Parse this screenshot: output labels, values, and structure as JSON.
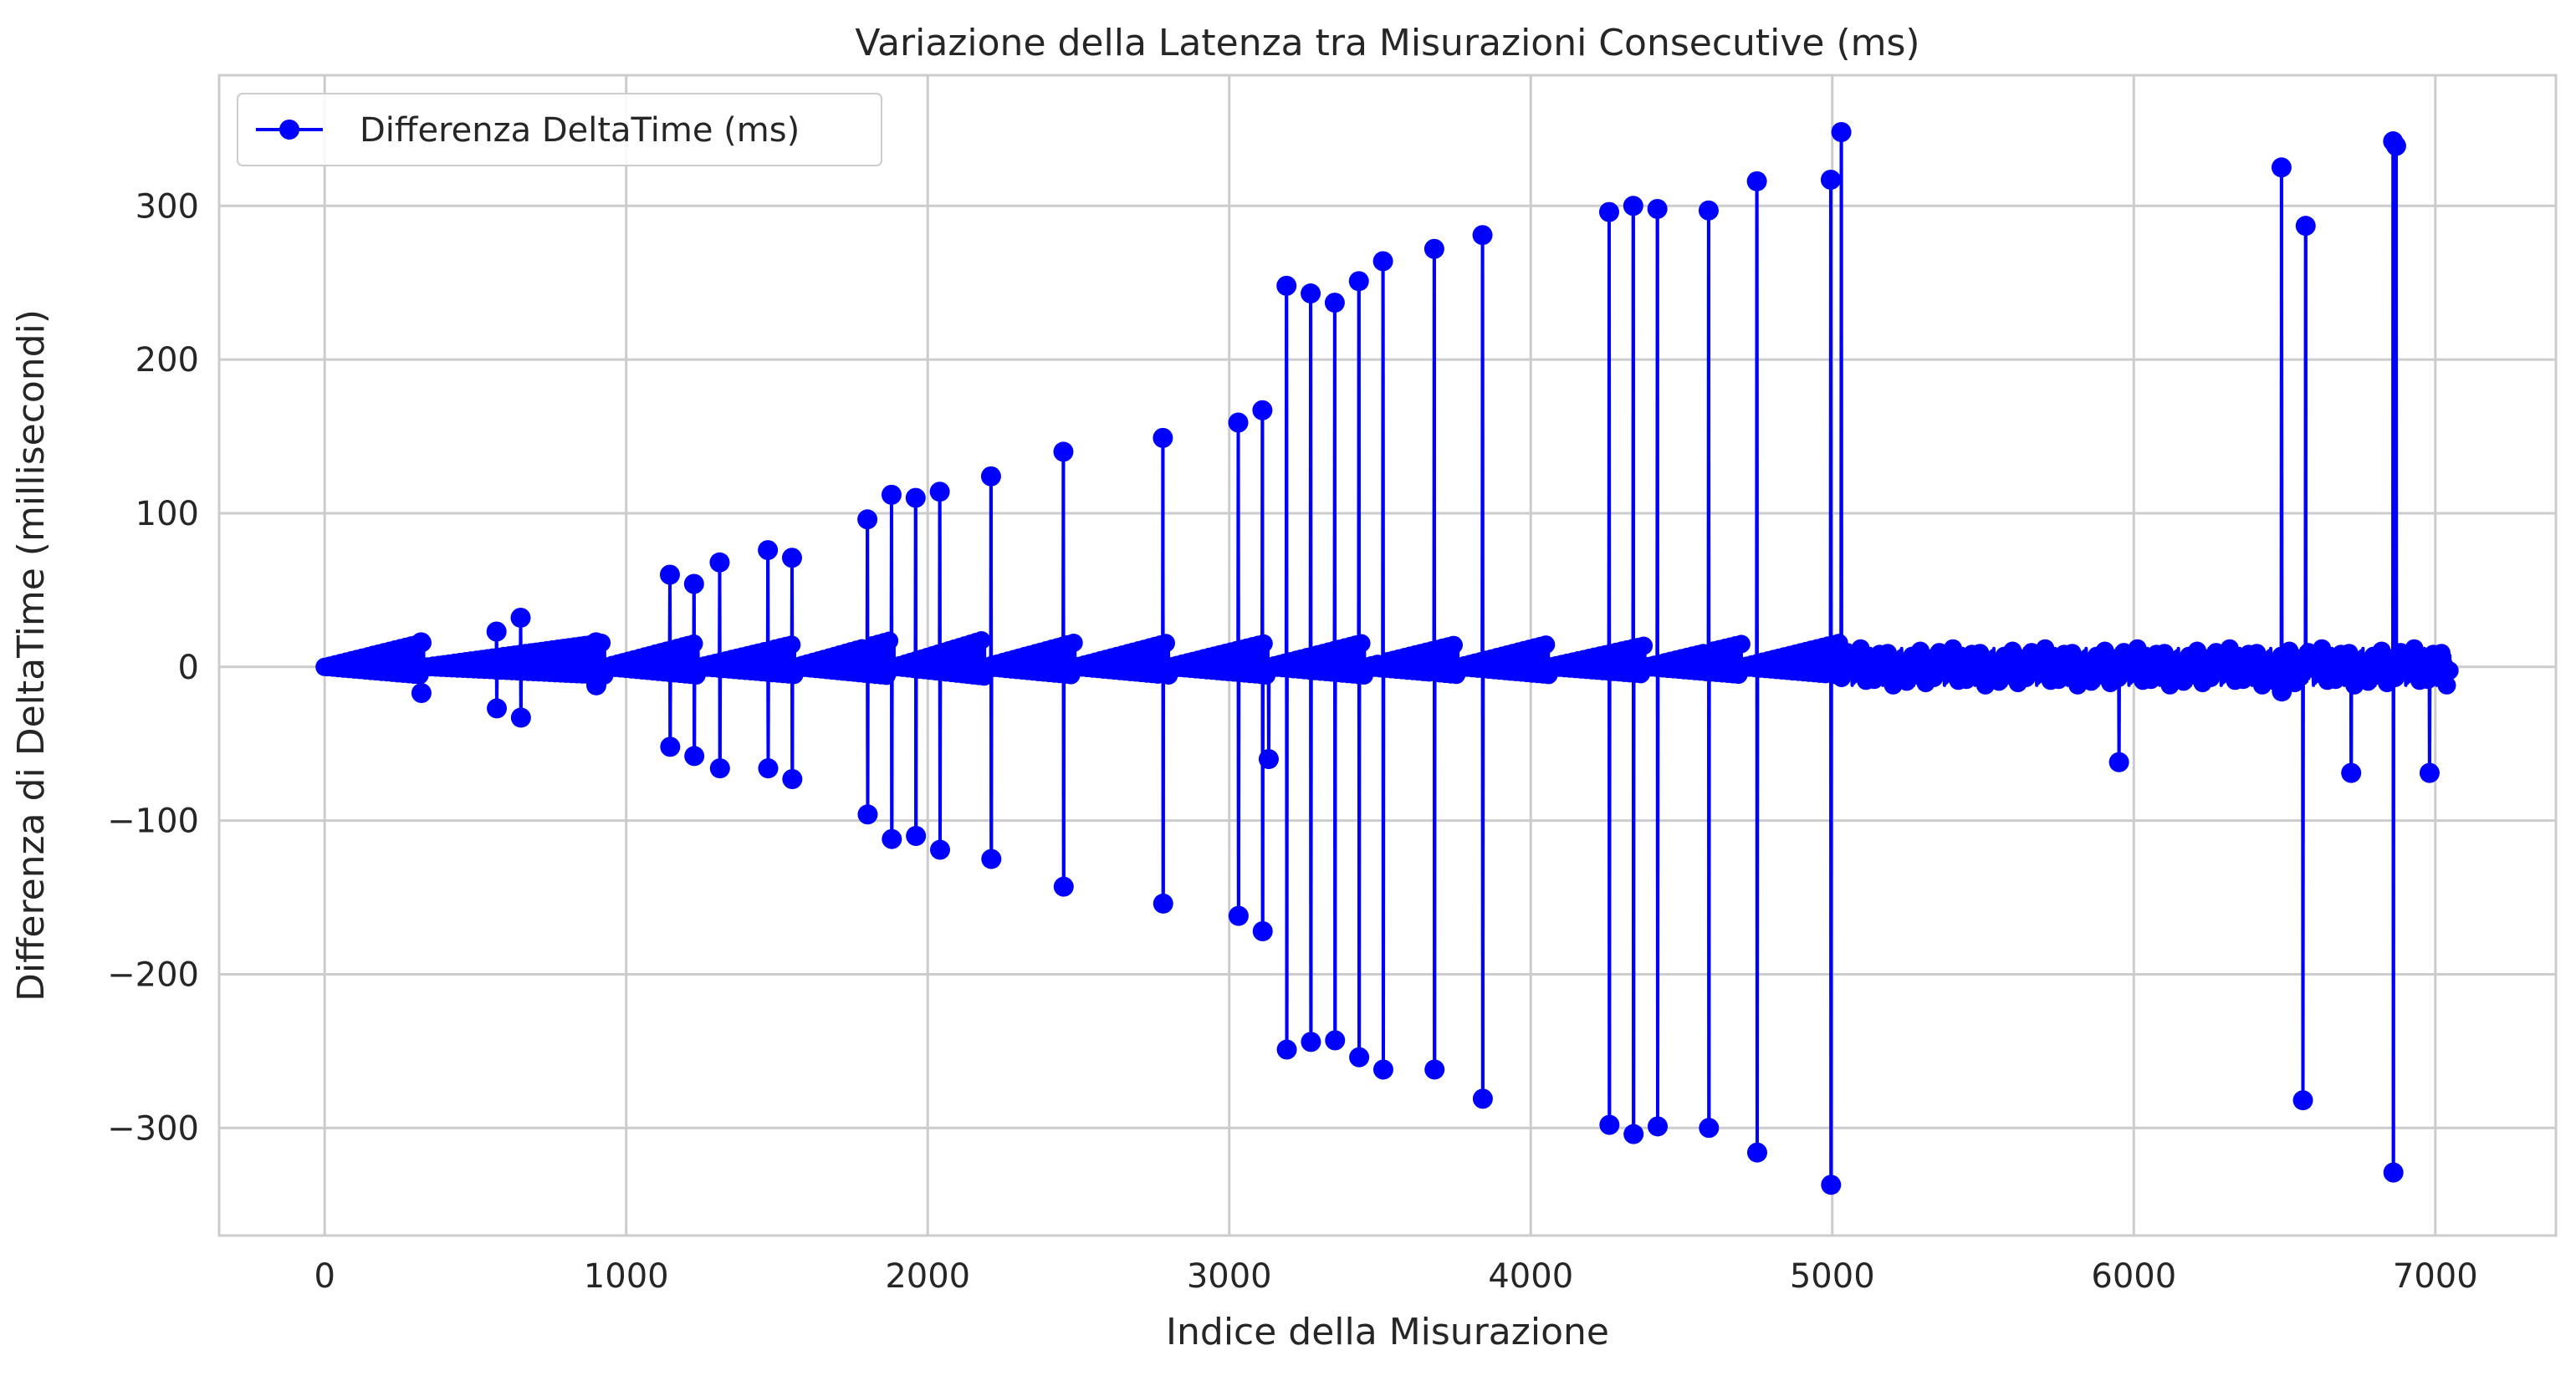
{
  "chart_data": {
    "type": "line",
    "title": "Variazione della Latenza tra Misurazioni Consecutive (ms)",
    "xlabel": "Indice della Misurazione",
    "ylabel": "Differenza di DeltaTime (millisecondi)",
    "xlim": [
      -350,
      7400
    ],
    "ylim": [
      -370,
      385
    ],
    "xticks": [
      0,
      1000,
      2000,
      3000,
      4000,
      5000,
      6000,
      7000
    ],
    "yticks": [
      -300,
      -200,
      -100,
      0,
      100,
      200,
      300
    ],
    "xtick_labels": [
      "0",
      "1000",
      "2000",
      "3000",
      "4000",
      "5000",
      "6000",
      "7000"
    ],
    "ytick_labels": [
      "−300",
      "−200",
      "−100",
      "0",
      "100",
      "200",
      "300"
    ],
    "grid": true,
    "legend_position": "top-left",
    "series": [
      {
        "name": "Differenza DeltaTime (ms)",
        "color": "#0000ff",
        "marker": "circle",
        "n_points": 7050,
        "baseline": {
          "description": "Sawtooth ramps of small increments near zero",
          "ramps": [
            {
              "start": 0,
              "end": 330,
              "peak": 16
            },
            {
              "start": 330,
              "end": 930,
              "peak": 16
            },
            {
              "start": 930,
              "end": 1240,
              "peak": 16
            },
            {
              "start": 1240,
              "end": 1560,
              "peak": 15
            },
            {
              "start": 1560,
              "end": 1890,
              "peak": 18
            },
            {
              "start": 1890,
              "end": 2190,
              "peak": 18
            },
            {
              "start": 2190,
              "end": 2490,
              "peak": 16
            },
            {
              "start": 2490,
              "end": 2800,
              "peak": 16
            },
            {
              "start": 2800,
              "end": 3130,
              "peak": 16
            },
            {
              "start": 3130,
              "end": 3450,
              "peak": 16
            },
            {
              "start": 3450,
              "end": 3760,
              "peak": 15
            },
            {
              "start": 3760,
              "end": 4060,
              "peak": 15
            },
            {
              "start": 4060,
              "end": 4380,
              "peak": 14
            },
            {
              "start": 4380,
              "end": 4700,
              "peak": 15
            },
            {
              "start": 4700,
              "end": 5030,
              "peak": 16
            }
          ],
          "tail_noise_after": 5030,
          "tail_noise_amplitude": 12
        },
        "spikes": [
          {
            "x": 320,
            "up": 16,
            "down": -17
          },
          {
            "x": 570,
            "up": 23,
            "down": -27
          },
          {
            "x": 650,
            "up": 32,
            "down": -33
          },
          {
            "x": 900,
            "up": 16,
            "down": -12
          },
          {
            "x": 1145,
            "up": 60,
            "down": -52
          },
          {
            "x": 1225,
            "up": 54,
            "down": -58
          },
          {
            "x": 1310,
            "up": 68,
            "down": -66
          },
          {
            "x": 1470,
            "up": 76,
            "down": -66
          },
          {
            "x": 1550,
            "up": 71,
            "down": -73
          },
          {
            "x": 1800,
            "up": 96,
            "down": -96
          },
          {
            "x": 1880,
            "up": 112,
            "down": -112
          },
          {
            "x": 1960,
            "up": 110,
            "down": -110
          },
          {
            "x": 2040,
            "up": 114,
            "down": -119
          },
          {
            "x": 2210,
            "up": 124,
            "down": -125
          },
          {
            "x": 2450,
            "up": 140,
            "down": -143
          },
          {
            "x": 2780,
            "up": 149,
            "down": -154
          },
          {
            "x": 3030,
            "up": 159,
            "down": -162
          },
          {
            "x": 3110,
            "up": 167,
            "down": -172
          },
          {
            "x": 3130,
            "up": 0,
            "down": -60
          },
          {
            "x": 3190,
            "up": 248,
            "down": -249
          },
          {
            "x": 3270,
            "up": 243,
            "down": -244
          },
          {
            "x": 3350,
            "up": 237,
            "down": -243
          },
          {
            "x": 3430,
            "up": 251,
            "down": -254
          },
          {
            "x": 3510,
            "up": 264,
            "down": -262
          },
          {
            "x": 3680,
            "up": 272,
            "down": -262
          },
          {
            "x": 3840,
            "up": 281,
            "down": -281
          },
          {
            "x": 4260,
            "up": 296,
            "down": -298
          },
          {
            "x": 4340,
            "up": 300,
            "down": -304
          },
          {
            "x": 4420,
            "up": 298,
            "down": -299
          },
          {
            "x": 4590,
            "up": 297,
            "down": -300
          },
          {
            "x": 4750,
            "up": 316,
            "down": -316
          },
          {
            "x": 4995,
            "up": 317,
            "down": -337
          },
          {
            "x": 5030,
            "up": 348,
            "down": 0
          },
          {
            "x": 5950,
            "up": 0,
            "down": -62
          },
          {
            "x": 6490,
            "up": 325,
            "down": -16
          },
          {
            "x": 6560,
            "up": 0,
            "down": -282
          },
          {
            "x": 6570,
            "up": 287,
            "down": 0
          },
          {
            "x": 6720,
            "up": 0,
            "down": -69
          },
          {
            "x": 6860,
            "up": 342,
            "down": -329
          },
          {
            "x": 6870,
            "up": 339,
            "down": 0
          },
          {
            "x": 6980,
            "up": 0,
            "down": -69
          }
        ]
      }
    ]
  }
}
